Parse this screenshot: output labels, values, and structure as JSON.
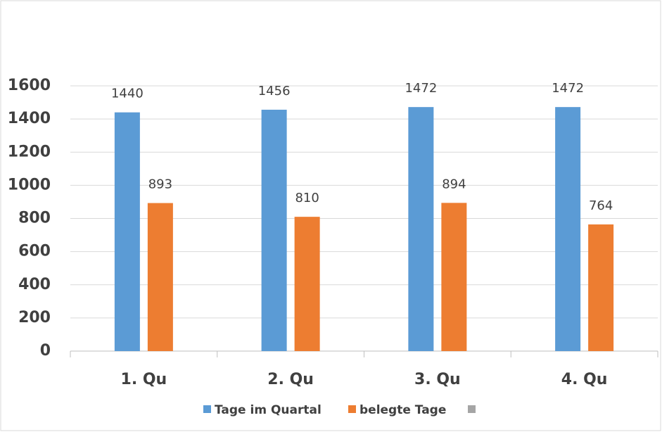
{
  "chart_data": {
    "type": "bar",
    "categories": [
      "1. Qu",
      "2. Qu",
      "3. Qu",
      "4. Qu"
    ],
    "series": [
      {
        "name": "Tage im Quartal",
        "color": "#5b9bd5",
        "values": [
          1440,
          1456,
          1472,
          1472
        ]
      },
      {
        "name": "belegte Tage",
        "color": "#ed7d31",
        "values": [
          893,
          810,
          894,
          764
        ]
      },
      {
        "color": "#a5a5a5",
        "values": [
          null,
          null,
          null,
          null
        ]
      }
    ],
    "ylim": [
      0,
      1600
    ],
    "yticks": [
      0,
      200,
      400,
      600,
      800,
      1000,
      1200,
      1400,
      1600
    ],
    "grid": true,
    "legend": "bottom"
  }
}
